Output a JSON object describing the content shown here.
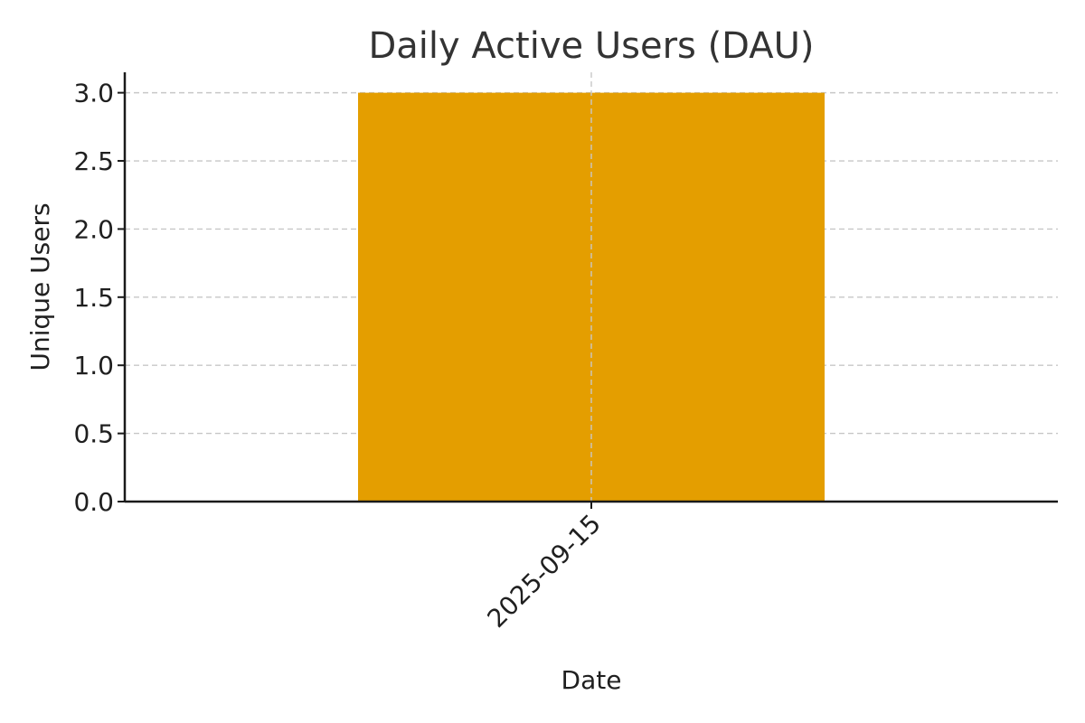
{
  "chart_data": {
    "type": "bar",
    "title": "Daily Active Users (DAU)",
    "xlabel": "Date",
    "ylabel": "Unique Users",
    "categories": [
      "2025-09-15"
    ],
    "values": [
      3
    ],
    "ylim": [
      0,
      3.15
    ],
    "yticks": [
      "0.0",
      "0.5",
      "1.0",
      "1.5",
      "2.0",
      "2.5",
      "3.0"
    ],
    "grid": true,
    "bar_color": "#E49E00",
    "x_tick_rotation_deg": -45
  }
}
